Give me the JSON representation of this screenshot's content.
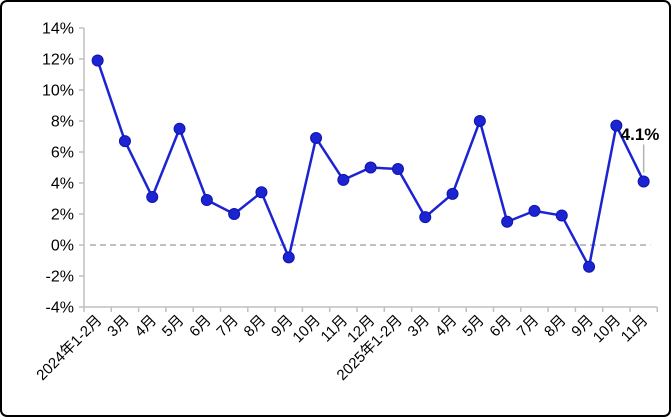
{
  "chart_data": {
    "type": "line",
    "categories": [
      "2024年1-2月",
      "3月",
      "4月",
      "5月",
      "6月",
      "7月",
      "8月",
      "9月",
      "10月",
      "11月",
      "12月",
      "2025年1-2月",
      "3月",
      "4月",
      "5月",
      "6月",
      "7月",
      "8月",
      "9月",
      "10月",
      "11月"
    ],
    "values": [
      11.9,
      6.7,
      3.1,
      7.5,
      2.9,
      2.0,
      3.4,
      -0.8,
      6.9,
      4.2,
      5.0,
      4.9,
      1.8,
      3.3,
      8.0,
      1.5,
      2.2,
      1.9,
      -1.4,
      7.7,
      4.1
    ],
    "title": "",
    "xlabel": "",
    "ylabel": "",
    "ylim": [
      -4,
      14
    ],
    "yticks": [
      14,
      12,
      10,
      8,
      6,
      4,
      2,
      0,
      -2,
      -4
    ],
    "ytick_suffix": "%",
    "grid": false,
    "zero_line": "dashed",
    "legend": "none",
    "annotation": {
      "text": "4.1%",
      "point_index": 20
    },
    "colors": {
      "line": "#1c24d2",
      "marker": "#1c24d2",
      "marker_edge": "#0d14b0",
      "axis": "#bfbfbf",
      "zero_line": "#ababab",
      "leader_line": "#b3b3b3",
      "text": "#000000"
    }
  }
}
